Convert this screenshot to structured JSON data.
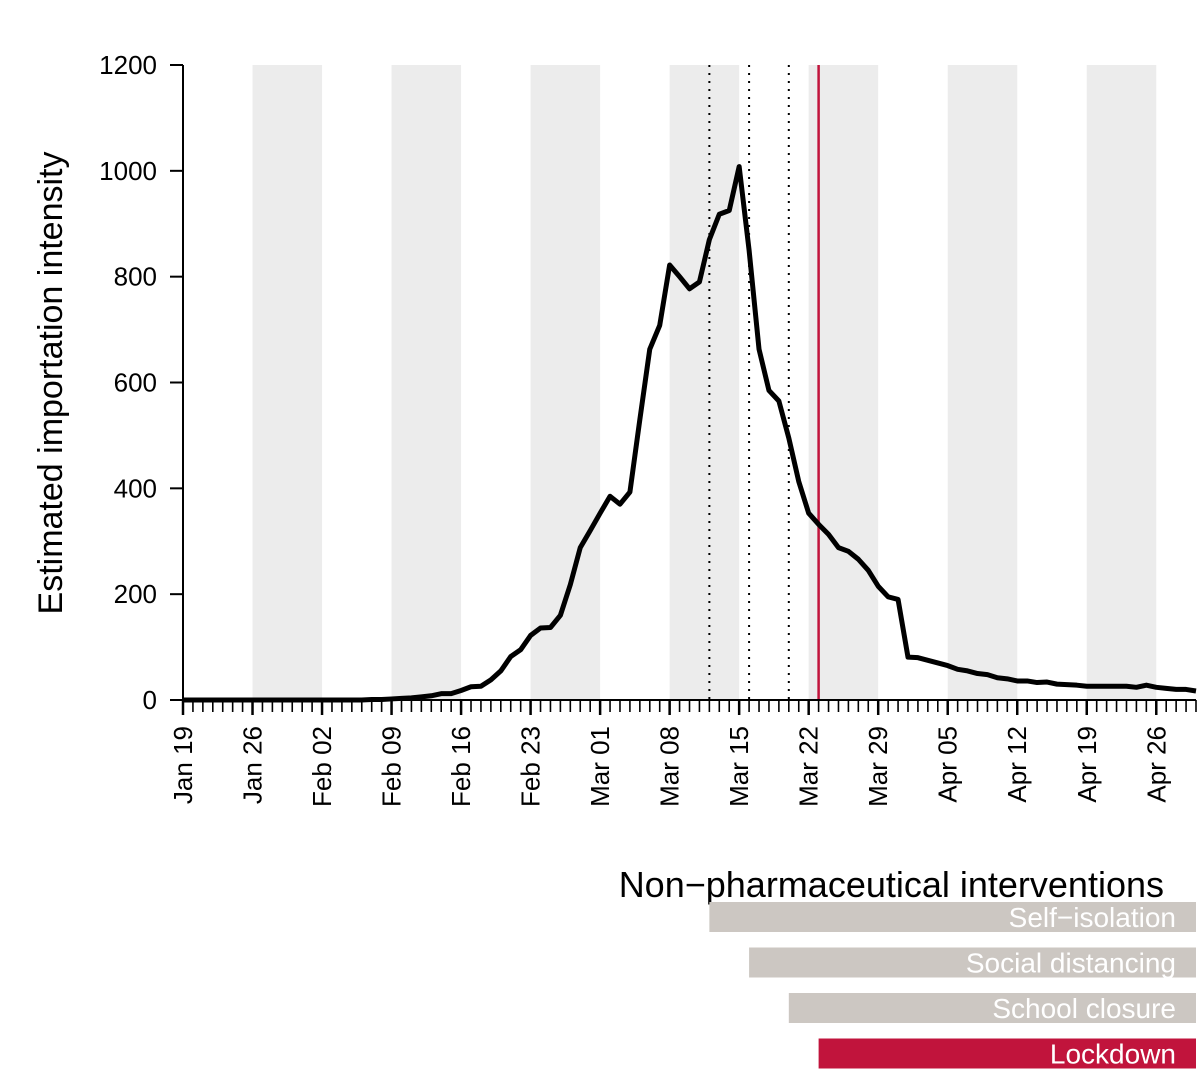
{
  "chart_data": {
    "type": "line",
    "xlabel": "",
    "ylabel": "Estimated importation intensity",
    "ylim": [
      0,
      1200
    ],
    "xlim": [
      "2020-01-19",
      "2020-04-30"
    ],
    "yticks": [
      0,
      200,
      400,
      600,
      800,
      1000,
      1200
    ],
    "xticks": [
      {
        "date": "2020-01-19",
        "label": "Jan 19"
      },
      {
        "date": "2020-01-26",
        "label": "Jan 26"
      },
      {
        "date": "2020-02-02",
        "label": "Feb 02"
      },
      {
        "date": "2020-02-09",
        "label": "Feb 09"
      },
      {
        "date": "2020-02-16",
        "label": "Feb 16"
      },
      {
        "date": "2020-02-23",
        "label": "Feb 23"
      },
      {
        "date": "2020-03-01",
        "label": "Mar 01"
      },
      {
        "date": "2020-03-08",
        "label": "Mar 08"
      },
      {
        "date": "2020-03-15",
        "label": "Mar 15"
      },
      {
        "date": "2020-03-22",
        "label": "Mar 22"
      },
      {
        "date": "2020-03-29",
        "label": "Mar 29"
      },
      {
        "date": "2020-04-05",
        "label": "Apr 05"
      },
      {
        "date": "2020-04-12",
        "label": "Apr 12"
      },
      {
        "date": "2020-04-19",
        "label": "Apr 19"
      },
      {
        "date": "2020-04-26",
        "label": "Apr 26"
      }
    ],
    "shaded_weeks": [
      [
        "2020-01-26",
        "2020-02-02"
      ],
      [
        "2020-02-09",
        "2020-02-16"
      ],
      [
        "2020-02-23",
        "2020-03-01"
      ],
      [
        "2020-03-08",
        "2020-03-15"
      ],
      [
        "2020-03-22",
        "2020-03-29"
      ],
      [
        "2020-04-05",
        "2020-04-12"
      ],
      [
        "2020-04-19",
        "2020-04-26"
      ]
    ],
    "grid": false,
    "series": [
      {
        "color": "#000000",
        "x": [
          "2020-01-19",
          "2020-01-20",
          "2020-01-21",
          "2020-01-22",
          "2020-01-23",
          "2020-01-24",
          "2020-01-25",
          "2020-01-26",
          "2020-01-27",
          "2020-01-28",
          "2020-01-29",
          "2020-01-30",
          "2020-01-31",
          "2020-02-01",
          "2020-02-02",
          "2020-02-03",
          "2020-02-04",
          "2020-02-05",
          "2020-02-06",
          "2020-02-07",
          "2020-02-08",
          "2020-02-09",
          "2020-02-10",
          "2020-02-11",
          "2020-02-12",
          "2020-02-13",
          "2020-02-14",
          "2020-02-15",
          "2020-02-16",
          "2020-02-17",
          "2020-02-18",
          "2020-02-19",
          "2020-02-20",
          "2020-02-21",
          "2020-02-22",
          "2020-02-23",
          "2020-02-24",
          "2020-02-25",
          "2020-02-26",
          "2020-02-27",
          "2020-02-28",
          "2020-02-29",
          "2020-03-01",
          "2020-03-02",
          "2020-03-03",
          "2020-03-04",
          "2020-03-05",
          "2020-03-06",
          "2020-03-07",
          "2020-03-08",
          "2020-03-09",
          "2020-03-10",
          "2020-03-11",
          "2020-03-12",
          "2020-03-13",
          "2020-03-14",
          "2020-03-15",
          "2020-03-16",
          "2020-03-17",
          "2020-03-18",
          "2020-03-19",
          "2020-03-20",
          "2020-03-21",
          "2020-03-22",
          "2020-03-23",
          "2020-03-24",
          "2020-03-25",
          "2020-03-26",
          "2020-03-27",
          "2020-03-28",
          "2020-03-29",
          "2020-03-30",
          "2020-03-31",
          "2020-04-01",
          "2020-04-02",
          "2020-04-03",
          "2020-04-04",
          "2020-04-05",
          "2020-04-06",
          "2020-04-07",
          "2020-04-08",
          "2020-04-09",
          "2020-04-10",
          "2020-04-11",
          "2020-04-12",
          "2020-04-13",
          "2020-04-14",
          "2020-04-15",
          "2020-04-16",
          "2020-04-17",
          "2020-04-18",
          "2020-04-19",
          "2020-04-20",
          "2020-04-21",
          "2020-04-22",
          "2020-04-23",
          "2020-04-24",
          "2020-04-25",
          "2020-04-26",
          "2020-04-27",
          "2020-04-28",
          "2020-04-29",
          "2020-04-30"
        ],
        "values": [
          0,
          0,
          0,
          0,
          0,
          0,
          0,
          0,
          0,
          0,
          0,
          0,
          0,
          0,
          0,
          0,
          0,
          0,
          0,
          1,
          1,
          2,
          3,
          4,
          6,
          8,
          12,
          12,
          18,
          25,
          26,
          38,
          55,
          82,
          95,
          122,
          136,
          137,
          160,
          218,
          288,
          320,
          353,
          385,
          370,
          393,
          530,
          663,
          708,
          822,
          800,
          777,
          790,
          870,
          918,
          925,
          1008,
          850,
          663,
          585,
          565,
          495,
          413,
          353,
          332,
          313,
          288,
          281,
          266,
          245,
          215,
          195,
          190,
          81,
          80,
          75,
          70,
          65,
          58,
          55,
          50,
          48,
          42,
          40,
          36,
          36,
          33,
          34,
          30,
          29,
          28,
          26,
          26,
          26,
          26,
          26,
          24,
          28,
          24,
          22,
          20,
          20,
          17
        ]
      }
    ],
    "reference_lines": [
      {
        "date": "2020-03-12",
        "style": "dotted",
        "color": "#000000"
      },
      {
        "date": "2020-03-16",
        "style": "dotted",
        "color": "#000000"
      },
      {
        "date": "2020-03-20",
        "style": "dotted",
        "color": "#000000"
      },
      {
        "date": "2020-03-23",
        "style": "solid",
        "color": "#c1143c"
      }
    ],
    "interventions_title": "Non−pharmaceutical interventions",
    "interventions": [
      {
        "label": "Self−isolation",
        "start": "2020-03-12",
        "color": "#ccc7c2"
      },
      {
        "label": "Social distancing",
        "start": "2020-03-16",
        "color": "#ccc7c2"
      },
      {
        "label": "School closure",
        "start": "2020-03-20",
        "color": "#ccc7c2"
      },
      {
        "label": "Lockdown",
        "start": "2020-03-23",
        "color": "#c1143c"
      }
    ],
    "colors": {
      "line": "#000000",
      "shade": "#ececec",
      "lockdown": "#c1143c",
      "intervention_bar": "#ccc7c2",
      "bar_text": "#ffffff"
    }
  }
}
